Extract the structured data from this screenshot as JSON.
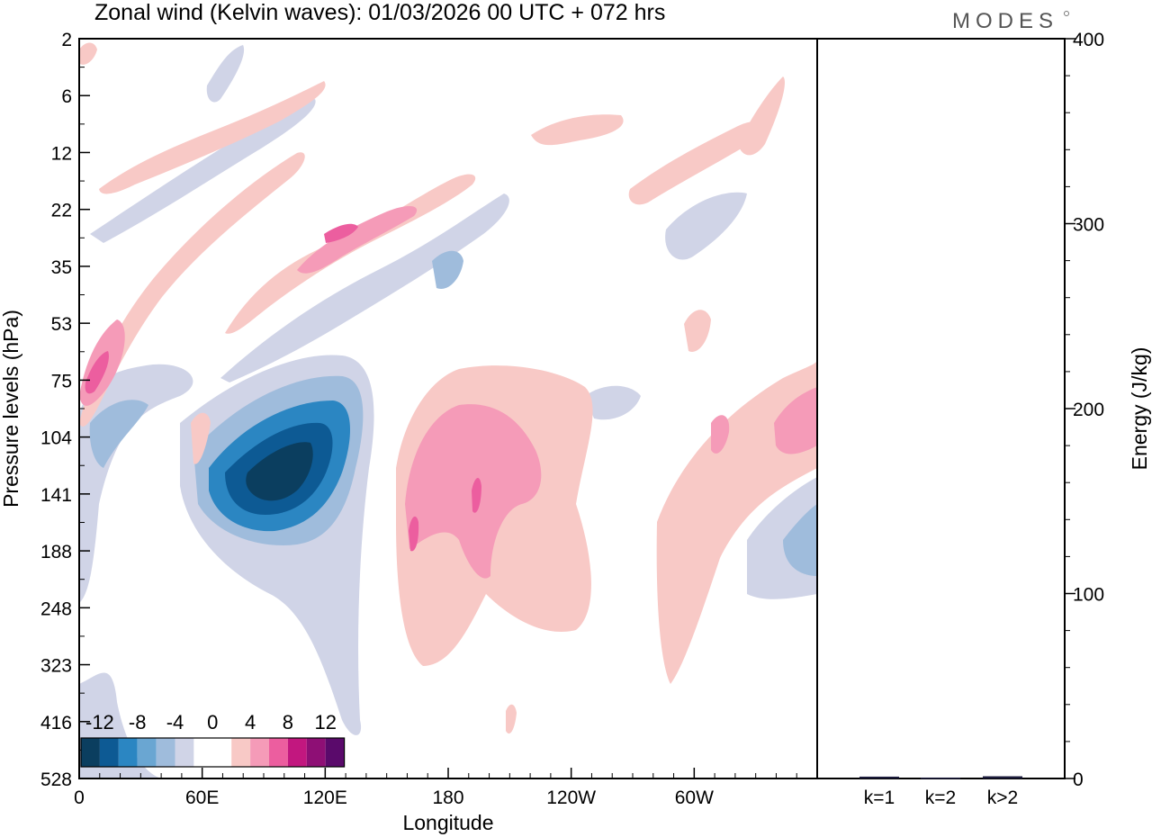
{
  "header": {
    "title": "Zonal wind (Kelvin waves):  01/03/2026  00 UTC  + 072 hrs",
    "logo": "MODES"
  },
  "colors": {
    "neg": [
      "#0b3e5f",
      "#0d5a94",
      "#2b86c2",
      "#6aa6d2",
      "#9fbcdc",
      "#d0d4e7"
    ],
    "zero": "#ffffff",
    "pos": [
      "#f8c9c6",
      "#f59bb8",
      "#ec5e9f",
      "#c2177f",
      "#8e0f75",
      "#5a0a6b"
    ]
  },
  "chart_data": [
    {
      "type": "heatmap",
      "title": "Zonal wind (Kelvin waves):  01/03/2026  00 UTC  + 072 hrs",
      "xlabel": "Longitude",
      "ylabel": "Pressure levels (hPa)",
      "x_ticks": [
        "0",
        "60E",
        "120E",
        "180",
        "120W",
        "60W"
      ],
      "y_ticks": [
        "2",
        "6",
        "12",
        "22",
        "35",
        "53",
        "75",
        "104",
        "141",
        "188",
        "248",
        "323",
        "416",
        "528"
      ],
      "legend_labels": [
        "-12",
        "-8",
        "-4",
        "0",
        "4",
        "8",
        "12"
      ],
      "legend_placement": "bottom-left",
      "grid": false,
      "note": "Filled contours of Kelvin-wave zonal wind by longitude and pressure; positive (pink) and negative (blue) anomalies tilting upward to the east."
    },
    {
      "type": "bar",
      "categories": [
        "k=1",
        "k=2",
        "k>2"
      ],
      "values": [
        1,
        0.5,
        1.2
      ],
      "ylabel": "Energy (J/kg)",
      "ylim": [
        0,
        400
      ],
      "y_ticks": [
        "0",
        "100",
        "200",
        "300",
        "400"
      ]
    }
  ]
}
